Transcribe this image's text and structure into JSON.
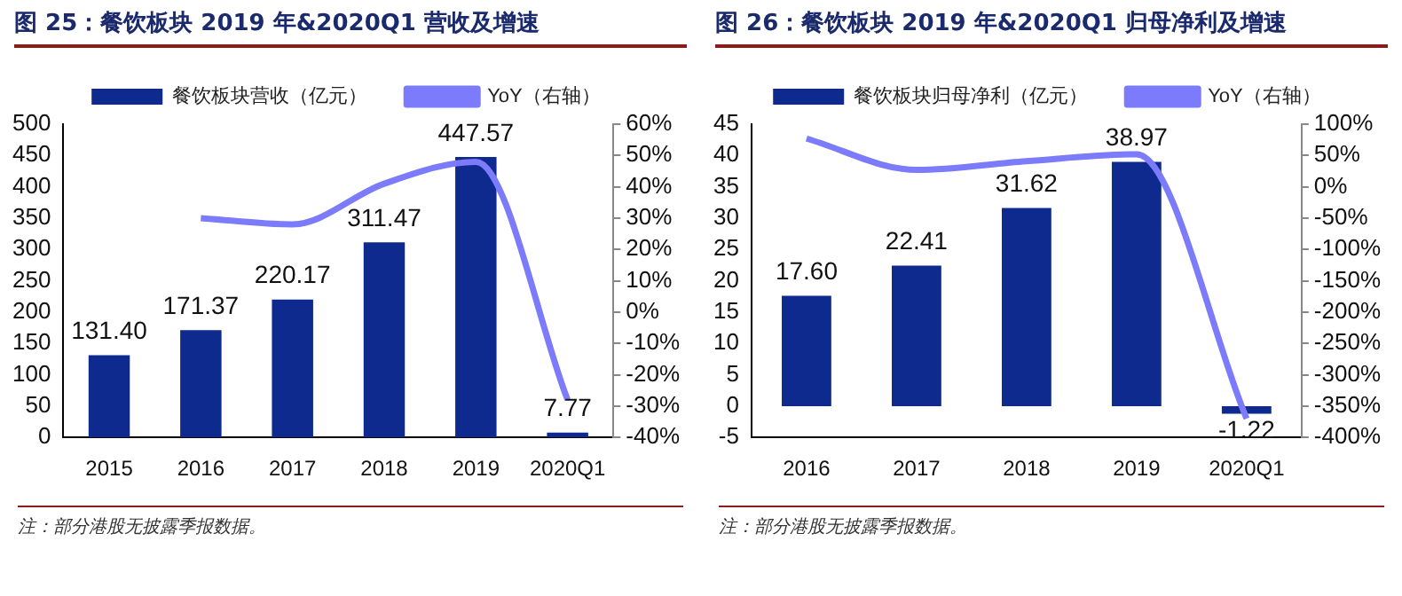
{
  "chart_data": [
    {
      "type": "bar",
      "title": "图 25：餐饮板块 2019 年&2020Q1 营收及增速",
      "categories": [
        "2015",
        "2016",
        "2017",
        "2018",
        "2019",
        "2020Q1"
      ],
      "series": [
        {
          "name": "餐饮板块营收（亿元）",
          "color": "#0e2a8e",
          "values": [
            131.4,
            171.37,
            220.17,
            311.47,
            447.57,
            7.77
          ],
          "value_labels": [
            "131.40",
            "171.37",
            "220.17",
            "311.47",
            "447.57",
            "7.77"
          ]
        },
        {
          "name": "YoY（右轴）",
          "type": "line",
          "axis": "y2",
          "color": "#7b7bfb",
          "values": [
            null,
            30,
            28,
            41,
            48,
            -28
          ]
        }
      ],
      "ylim": [
        0,
        500
      ],
      "yticks": [
        0,
        50,
        100,
        150,
        200,
        250,
        300,
        350,
        400,
        450,
        500
      ],
      "y2lim": [
        -40,
        60
      ],
      "y2ticks": [
        {
          "value": -40,
          "label": "-40%"
        },
        {
          "value": -30,
          "label": "-30%"
        },
        {
          "value": -20,
          "label": "-20%"
        },
        {
          "value": -10,
          "label": "-10%"
        },
        {
          "value": 0,
          "label": "0%"
        },
        {
          "value": 10,
          "label": "10%"
        },
        {
          "value": 20,
          "label": "20%"
        },
        {
          "value": 30,
          "label": "30%"
        },
        {
          "value": 40,
          "label": "40%"
        },
        {
          "value": 50,
          "label": "50%"
        },
        {
          "value": 60,
          "label": "60%"
        }
      ],
      "grid": false,
      "legend": "top",
      "marker": "none",
      "annotations": [
        "注：部分港股无披露季报数据。"
      ]
    },
    {
      "type": "bar",
      "title": "图 26：餐饮板块 2019 年&2020Q1 归母净利及增速",
      "categories": [
        "2016",
        "2017",
        "2018",
        "2019",
        "2020Q1"
      ],
      "series": [
        {
          "name": "餐饮板块归母净利（亿元）",
          "color": "#0e2a8e",
          "values": [
            17.6,
            22.41,
            31.62,
            38.97,
            -1.22
          ],
          "value_labels": [
            "17.60",
            "22.41",
            "31.62",
            "38.97",
            "-1.22"
          ]
        },
        {
          "name": "YoY（右轴）",
          "type": "line",
          "axis": "y2",
          "color": "#7b7bfb",
          "values": [
            77,
            27,
            41,
            52,
            -370
          ]
        }
      ],
      "ylim": [
        -5,
        45
      ],
      "yticks": [
        -5,
        0,
        5,
        10,
        15,
        20,
        25,
        30,
        35,
        40,
        45
      ],
      "y2lim": [
        -400,
        100
      ],
      "y2ticks": [
        {
          "value": -400,
          "label": "-400%"
        },
        {
          "value": -350,
          "label": "-350%"
        },
        {
          "value": -300,
          "label": "-300%"
        },
        {
          "value": -250,
          "label": "-250%"
        },
        {
          "value": -200,
          "label": "-200%"
        },
        {
          "value": -150,
          "label": "-150%"
        },
        {
          "value": -100,
          "label": "-100%"
        },
        {
          "value": -50,
          "label": "-50%"
        },
        {
          "value": 0,
          "label": "0%"
        },
        {
          "value": 50,
          "label": "50%"
        },
        {
          "value": 100,
          "label": "100%"
        }
      ],
      "grid": false,
      "legend": "top",
      "marker": "none",
      "annotations": [
        "注：部分港股无披露季报数据。"
      ]
    }
  ]
}
